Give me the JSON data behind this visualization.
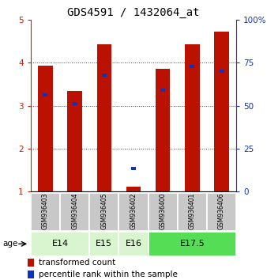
{
  "title": "GDS4591 / 1432064_at",
  "samples": [
    "GSM936403",
    "GSM936404",
    "GSM936405",
    "GSM936402",
    "GSM936400",
    "GSM936401",
    "GSM936406"
  ],
  "red_values": [
    3.93,
    3.35,
    4.42,
    1.12,
    3.85,
    4.42,
    4.72
  ],
  "blue_values": [
    3.22,
    3.01,
    3.67,
    1.5,
    3.33,
    3.88,
    3.76
  ],
  "age_groups": [
    {
      "label": "E14",
      "start": 0,
      "end": 2,
      "color": "#d8f5d0"
    },
    {
      "label": "E15",
      "start": 2,
      "end": 3,
      "color": "#d8f5d0"
    },
    {
      "label": "E16",
      "start": 3,
      "end": 4,
      "color": "#d8f5d0"
    },
    {
      "label": "E17.5",
      "start": 4,
      "end": 7,
      "color": "#55dd55"
    }
  ],
  "ylim_left": [
    1,
    5
  ],
  "ylim_right": [
    0,
    100
  ],
  "yticks_left": [
    1,
    2,
    3,
    4,
    5
  ],
  "yticks_right": [
    0,
    25,
    50,
    75,
    100
  ],
  "ytick_labels_right": [
    "0",
    "25",
    "50",
    "75",
    "100%"
  ],
  "red_color": "#bb1100",
  "blue_color": "#1133bb",
  "bar_width": 0.5,
  "sample_bg_color": "#c8c8c8",
  "legend_red": "transformed count",
  "legend_blue": "percentile rank within the sample",
  "age_label": "age",
  "left_tick_color": "#cc2200",
  "right_tick_color": "#1133bb",
  "grid_linestyle": "dotted",
  "grid_color": "#444444",
  "title_fontsize": 10,
  "tick_fontsize": 7.5,
  "label_fontsize": 7.5,
  "sample_fontsize": 5.5,
  "age_fontsize": 8
}
